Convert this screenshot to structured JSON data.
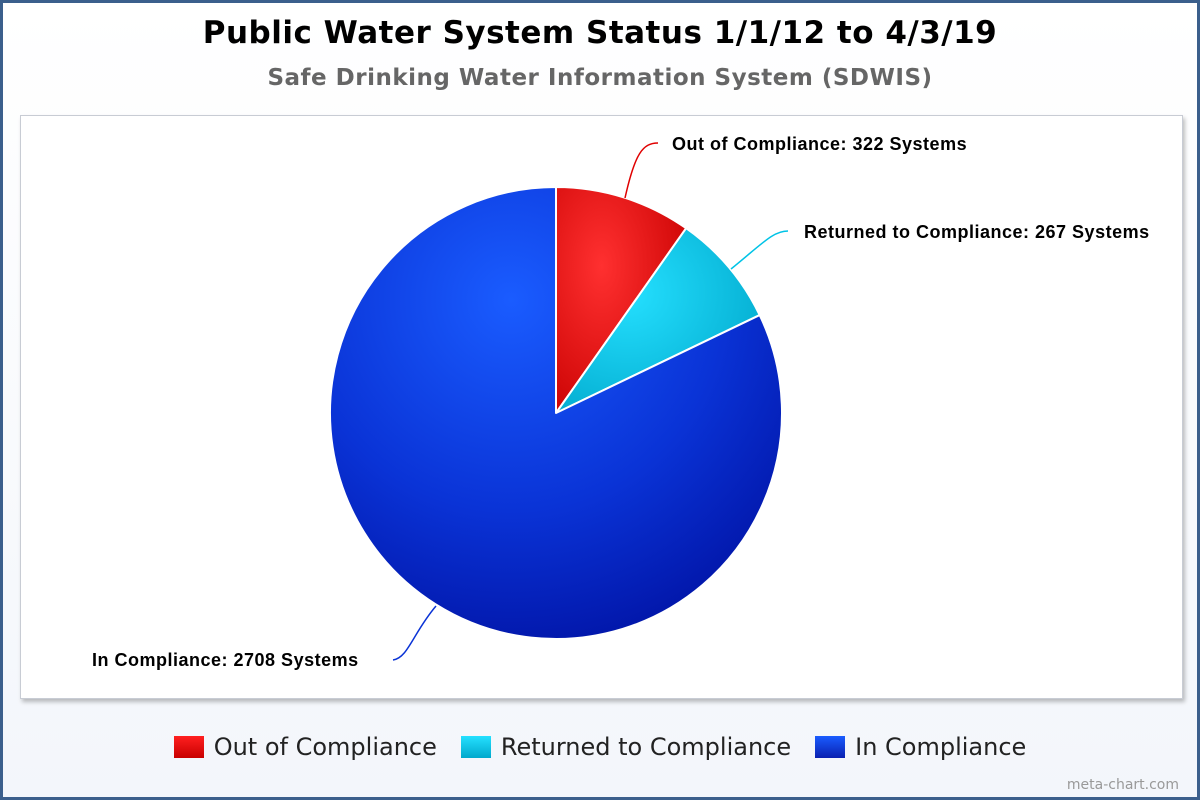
{
  "chart_data": {
    "type": "pie",
    "title": "Public Water System Status 1/1/12 to 4/3/19",
    "subtitle": "Safe Drinking Water Information System (SDWIS)",
    "slices": [
      {
        "name": "Out of Compliance",
        "value": 322,
        "label": "Out of Compliance: 322 Systems",
        "color": "#e00000"
      },
      {
        "name": "Returned to Compliance",
        "value": 267,
        "label": "Returned to Compliance: 267 Systems",
        "color": "#00c3e6"
      },
      {
        "name": "In Compliance",
        "value": 2708,
        "label": "In Compliance: 2708 Systems",
        "color": "#0a33d6"
      }
    ],
    "legend": [
      {
        "label": "Out of Compliance",
        "color": "#e00000"
      },
      {
        "label": "Returned to Compliance",
        "color": "#00c3e6"
      },
      {
        "label": "In Compliance",
        "color": "#0a33d6"
      }
    ]
  },
  "watermark": "meta-chart.com"
}
